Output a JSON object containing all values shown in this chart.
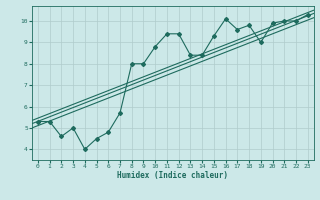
{
  "xlabel": "Humidex (Indice chaleur)",
  "bg_color": "#cce8e8",
  "line_color": "#1e6b5e",
  "grid_color": "#b0cccc",
  "xlim": [
    -0.5,
    23.5
  ],
  "ylim": [
    3.5,
    10.7
  ],
  "xticks": [
    0,
    1,
    2,
    3,
    4,
    5,
    6,
    7,
    8,
    9,
    10,
    11,
    12,
    13,
    14,
    15,
    16,
    17,
    18,
    19,
    20,
    21,
    22,
    23
  ],
  "yticks": [
    4,
    5,
    6,
    7,
    8,
    9,
    10
  ],
  "scatter_x": [
    0,
    1,
    2,
    3,
    4,
    5,
    6,
    7,
    8,
    9,
    10,
    11,
    12,
    13,
    14,
    15,
    16,
    17,
    18,
    19,
    20,
    21,
    22,
    23
  ],
  "scatter_y": [
    5.3,
    5.3,
    4.6,
    5.0,
    4.0,
    4.5,
    4.8,
    5.7,
    8.0,
    8.0,
    8.8,
    9.4,
    9.4,
    8.4,
    8.4,
    9.3,
    10.1,
    9.6,
    9.8,
    9.0,
    9.9,
    10.0,
    10.0,
    10.3
  ],
  "reg_lines": [
    [
      5.0,
      10.15
    ],
    [
      5.2,
      10.35
    ],
    [
      5.35,
      10.5
    ]
  ]
}
